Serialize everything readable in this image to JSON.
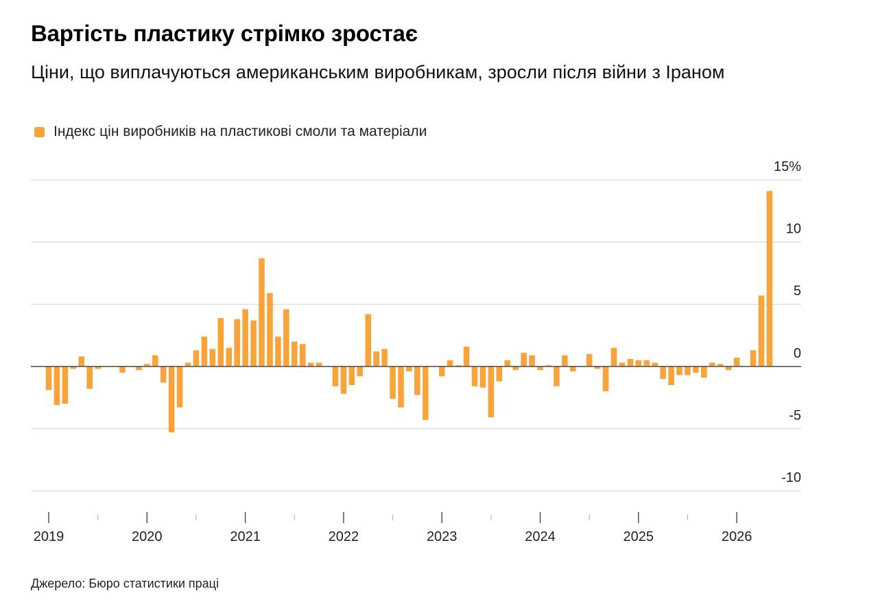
{
  "title": "Вартість пластику стрімко зростає",
  "subtitle": "Ціни, що виплачуються американським виробникам, зросли після війни з Іраном",
  "source": "Джерело: Бюро статистики праці",
  "chart_data": {
    "type": "bar",
    "title": "Вартість пластику стрімко зростає",
    "subtitle": "Ціни, що виплачуються американським виробникам, зросли після війни з Іраном",
    "xlabel": "",
    "ylabel": "",
    "ylim": [
      -10,
      15
    ],
    "yticks": [
      {
        "value": 15,
        "label": "15%"
      },
      {
        "value": 10,
        "label": "10"
      },
      {
        "value": 5,
        "label": "5"
      },
      {
        "value": 0,
        "label": "0"
      },
      {
        "value": -5,
        "label": "-5"
      },
      {
        "value": -10,
        "label": "-10"
      }
    ],
    "year_labels": [
      "2019",
      "2020",
      "2021",
      "2022",
      "2023",
      "2024",
      "2025",
      "2026"
    ],
    "grid": true,
    "legend_position": "top-left",
    "series": [
      {
        "name": "Індекс цін виробників на пластикові смоли та матеріали",
        "color": "#f9a43a",
        "start": "2019-01",
        "values": [
          -1.9,
          -3.1,
          -3.0,
          -0.2,
          0.8,
          -1.8,
          -0.2,
          0.0,
          0.0,
          -0.5,
          0.0,
          -0.3,
          0.2,
          0.9,
          -1.3,
          -5.3,
          -3.3,
          0.3,
          1.3,
          2.4,
          1.4,
          3.9,
          1.5,
          3.8,
          4.6,
          3.7,
          8.7,
          5.9,
          2.4,
          4.6,
          2.0,
          1.8,
          0.3,
          0.3,
          0.0,
          -1.6,
          -2.2,
          -1.5,
          -0.8,
          4.2,
          1.2,
          1.4,
          -2.6,
          -3.3,
          -0.4,
          -2.3,
          -4.3,
          0.0,
          -0.8,
          0.5,
          0.1,
          1.6,
          -1.6,
          -1.7,
          -4.1,
          -1.2,
          0.5,
          -0.3,
          1.1,
          0.9,
          -0.3,
          0.1,
          -1.6,
          0.9,
          -0.4,
          0.0,
          1.0,
          -0.2,
          -2.0,
          1.5,
          0.3,
          0.6,
          0.5,
          0.5,
          0.3,
          -1.0,
          -1.5,
          -0.7,
          -0.7,
          -0.5,
          -0.9,
          0.3,
          0.2,
          -0.3,
          0.7,
          0.0,
          1.3,
          5.7,
          14.1
        ]
      }
    ]
  }
}
